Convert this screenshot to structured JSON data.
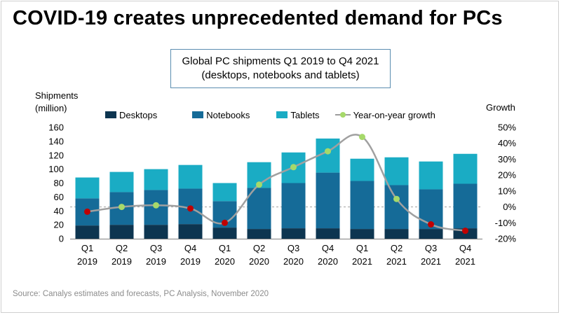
{
  "title": "COVID-19 creates unprecedented demand for PCs",
  "subtitle_lines": [
    "Global PC shipments Q1 2019 to Q4 2021",
    "(desktops, notebooks and tablets)"
  ],
  "source": "Source:  Canalys estimates and forecasts, PC Analysis, November 2020",
  "colors": {
    "desktops": "#0d3550",
    "notebooks": "#156b98",
    "tablets": "#1aacc4",
    "growth_line": "#a0a0a0",
    "growth_marker_green": "#a6d96a",
    "growth_marker_red": "#c00000",
    "reference_line": "#a0a0a0"
  },
  "chart_data": {
    "type": "bar",
    "stacked": true,
    "ylabel_lines": [
      "Shipments",
      "(million)"
    ],
    "y2label": "Growth",
    "ylim": [
      0,
      160
    ],
    "y_ticks": [
      "0",
      "20",
      "40",
      "60",
      "80",
      "100",
      "120",
      "140",
      "160"
    ],
    "y2lim": [
      -20,
      50
    ],
    "y2_ticks": [
      "-20%",
      "-10%",
      "0%",
      "10%",
      "20%",
      "30%",
      "40%",
      "50%"
    ],
    "categories": [
      [
        "Q1",
        "2019"
      ],
      [
        "Q2",
        "2019"
      ],
      [
        "Q3",
        "2019"
      ],
      [
        "Q4",
        "2019"
      ],
      [
        "Q1",
        "2020"
      ],
      [
        "Q2",
        "2020"
      ],
      [
        "Q3",
        "2020"
      ],
      [
        "Q4",
        "2020"
      ],
      [
        "Q1",
        "2021"
      ],
      [
        "Q2",
        "2021"
      ],
      [
        "Q3",
        "2021"
      ],
      [
        "Q4",
        "2021"
      ]
    ],
    "series": [
      {
        "name": "Desktops",
        "values": [
          19,
          20,
          20,
          21,
          16,
          14,
          15,
          15,
          14,
          14,
          14,
          15
        ]
      },
      {
        "name": "Notebooks",
        "values": [
          39,
          47,
          50,
          51,
          38,
          59,
          65,
          80,
          69,
          63,
          57,
          64
        ]
      },
      {
        "name": "Tablets",
        "values": [
          30,
          29,
          30,
          34,
          26,
          37,
          44,
          49,
          32,
          40,
          40,
          43
        ]
      }
    ],
    "line_series": {
      "name": "Year-on-year growth",
      "axis": "right",
      "values": [
        -3,
        0,
        1,
        -1,
        -10,
        14,
        25,
        35,
        44,
        5,
        -11,
        -15
      ],
      "marker_colors": [
        "red",
        "green",
        "green",
        "red",
        "red",
        "green",
        "green",
        "green",
        "green",
        "green",
        "red",
        "red"
      ]
    },
    "reference_line_y2": 0,
    "legend_position": "top"
  }
}
